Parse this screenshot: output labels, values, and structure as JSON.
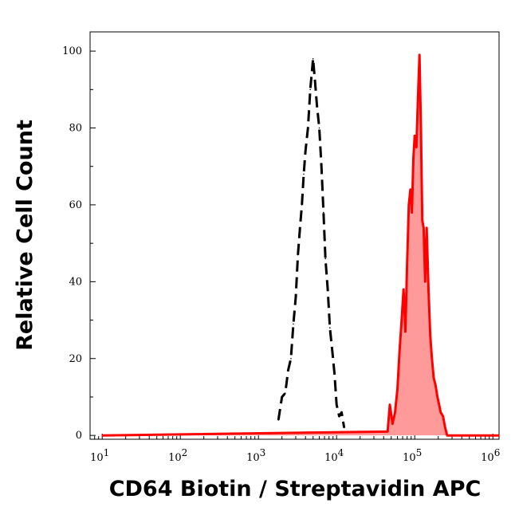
{
  "chart_data": {
    "type": "area",
    "xlabel": "CD64 Biotin / Streptavidin APC",
    "ylabel": "Relative Cell Count",
    "x_scale": "log",
    "xlim": [
      7,
      1200000
    ],
    "ylim": [
      -1,
      105
    ],
    "x_ticks": [
      {
        "base": "10",
        "exp": "1",
        "value": 10
      },
      {
        "base": "10",
        "exp": "2",
        "value": 100
      },
      {
        "base": "10",
        "exp": "3",
        "value": 1000
      },
      {
        "base": "10",
        "exp": "4",
        "value": 10000
      },
      {
        "base": "10",
        "exp": "5",
        "value": 100000
      },
      {
        "base": "10",
        "exp": "6",
        "value": 1000000
      }
    ],
    "y_ticks": [
      {
        "label": "0",
        "value": 0
      },
      {
        "label": "20",
        "value": 20
      },
      {
        "label": "40",
        "value": 40
      },
      {
        "label": "60",
        "value": 60
      },
      {
        "label": "80",
        "value": 80
      },
      {
        "label": "100",
        "value": 100
      }
    ],
    "grid": false,
    "legend": "none",
    "series": [
      {
        "style": "dashed",
        "color": "#000000",
        "fill": "none",
        "x": [
          1800,
          2000,
          2200,
          2400,
          2600,
          2800,
          3000,
          3200,
          3400,
          3600,
          3800,
          4000,
          4300,
          4600,
          5000,
          5300,
          5600,
          6000,
          6400,
          6800,
          7200,
          7700,
          8200,
          8800,
          9400,
          10000,
          10800,
          11600,
          12500
        ],
        "y": [
          4,
          10,
          11,
          17,
          20,
          29,
          36,
          47,
          54,
          60,
          68,
          74,
          80,
          90,
          98,
          92,
          86,
          80,
          70,
          58,
          46,
          38,
          28,
          22,
          16,
          8,
          5,
          6,
          2
        ]
      },
      {
        "style": "solid",
        "color": "#ff0000",
        "fill": "#ff9a9a",
        "x": [
          10,
          45000,
          48000,
          52000,
          56000,
          60000,
          64000,
          68000,
          72000,
          76000,
          80000,
          84000,
          88000,
          92000,
          96000,
          100000,
          105000,
          110000,
          115000,
          120000,
          125000,
          130000,
          136000,
          142000,
          150000,
          158000,
          166000,
          175000,
          185000,
          195000,
          205000,
          215000,
          230000,
          245000,
          260000,
          1200000
        ],
        "y": [
          0,
          1,
          8,
          3,
          6,
          12,
          22,
          30,
          38,
          27,
          45,
          60,
          64,
          58,
          72,
          78,
          75,
          88,
          99,
          80,
          56,
          54,
          40,
          54,
          38,
          26,
          20,
          15,
          13,
          10,
          8,
          6,
          5,
          2,
          0,
          0
        ]
      }
    ]
  }
}
